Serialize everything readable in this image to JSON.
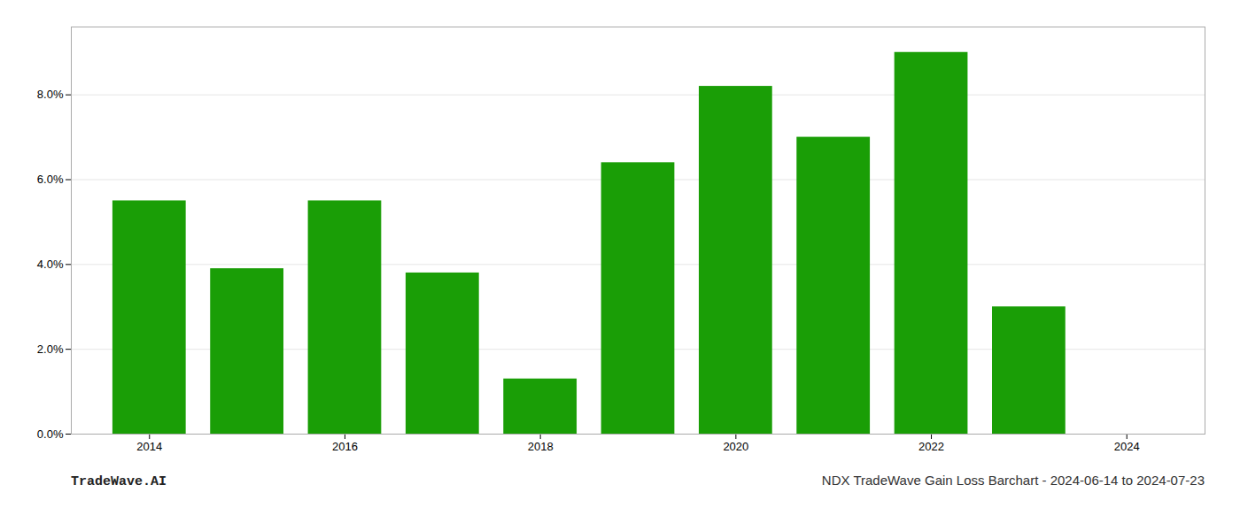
{
  "chart_data": {
    "type": "bar",
    "x": [
      2014,
      2015,
      2016,
      2017,
      2018,
      2019,
      2020,
      2021,
      2022,
      2023
    ],
    "values": [
      0.055,
      0.039,
      0.055,
      0.038,
      0.013,
      0.064,
      0.082,
      0.07,
      0.09,
      0.03
    ],
    "color": "#1a9e06",
    "xlim": [
      2013.2,
      2024.8
    ],
    "xticks": [
      2014,
      2016,
      2018,
      2020,
      2022,
      2024
    ],
    "ylim": [
      0,
      0.096
    ],
    "yticks": [
      {
        "value": 0.0,
        "label": "0.0%"
      },
      {
        "value": 0.02,
        "label": "2.0%"
      },
      {
        "value": 0.04,
        "label": "4.0%"
      },
      {
        "value": 0.06,
        "label": "6.0%"
      },
      {
        "value": 0.08,
        "label": "8.0%"
      }
    ],
    "grid": true,
    "annotations": [
      "TradeWave.AI",
      "NDX TradeWave Gain Loss Barchart - 2024-06-14 to 2024-07-23"
    ]
  }
}
